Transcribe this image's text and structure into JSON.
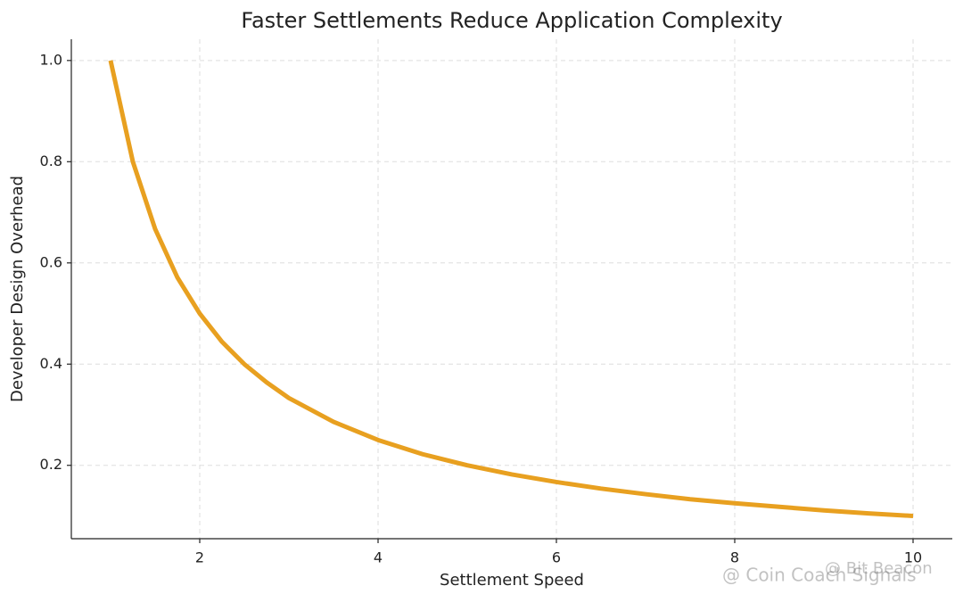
{
  "chart_data": {
    "type": "line",
    "title": "Faster Settlements Reduce Application Complexity",
    "x_label": "Settlement Speed",
    "y_label": "Developer Design Overhead",
    "x": [
      1,
      1.25,
      1.5,
      1.75,
      2,
      2.25,
      2.5,
      2.75,
      3,
      3.5,
      4,
      4.5,
      5,
      5.5,
      6,
      6.5,
      7,
      7.5,
      8,
      8.5,
      9,
      9.5,
      10
    ],
    "series": [
      {
        "color": "#e8a020",
        "values": [
          1,
          0.8,
          0.667,
          0.571,
          0.5,
          0.444,
          0.4,
          0.364,
          0.333,
          0.286,
          0.25,
          0.222,
          0.2,
          0.182,
          0.167,
          0.154,
          0.143,
          0.133,
          0.125,
          0.118,
          0.111,
          0.105,
          0.1
        ]
      }
    ],
    "xlim": [
      0.56,
      10.44
    ],
    "ylim": [
      0.055,
      1.042
    ],
    "xticks": [
      2,
      4,
      6,
      8,
      10
    ],
    "yticks": [
      0.2,
      0.4,
      0.6,
      0.8,
      {
        "value": 1,
        "label": "1.0"
      }
    ],
    "grid": true,
    "watermarks": [
      "@ Coin Coach Signals",
      "@ Bit Beacon"
    ]
  }
}
